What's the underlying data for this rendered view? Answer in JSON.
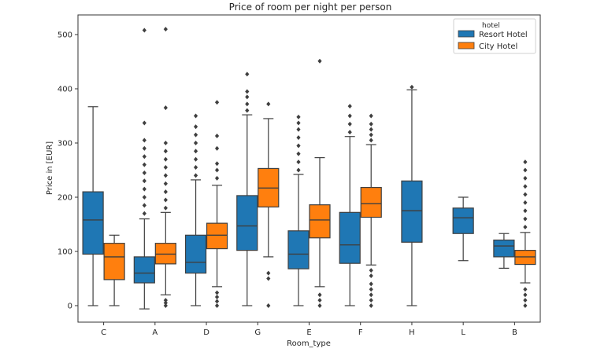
{
  "chart_data": {
    "type": "box",
    "title": "Price of room per night per person",
    "xlabel": "Room_type",
    "ylabel": "Price in [EUR]",
    "ylim": [
      -30,
      555
    ],
    "yticks": [
      0,
      100,
      200,
      300,
      400,
      500
    ],
    "legend": {
      "title": "hotel",
      "placement": "top-right",
      "entries": [
        "Resort Hotel",
        "City Hotel"
      ]
    },
    "categories": [
      "C",
      "A",
      "D",
      "G",
      "E",
      "F",
      "H",
      "L",
      "B"
    ],
    "series": [
      {
        "name": "Resort Hotel",
        "color": "#1f77b4",
        "boxes": [
          {
            "category": "C",
            "min": 0,
            "q1": 95,
            "median": 158,
            "q3": 210,
            "max": 367,
            "outliers": []
          },
          {
            "category": "A",
            "min": -6,
            "q1": 42,
            "median": 60,
            "q3": 90,
            "max": 160,
            "outliers": [
              170,
              185,
              200,
              215,
              230,
              245,
              260,
              275,
              290,
              305,
              337,
              508
            ]
          },
          {
            "category": "D",
            "min": 0,
            "q1": 60,
            "median": 80,
            "q3": 130,
            "max": 232,
            "outliers": [
              240,
              255,
              270,
              285,
              300,
              315,
              330,
              350
            ]
          },
          {
            "category": "G",
            "min": 0,
            "q1": 102,
            "median": 147,
            "q3": 203,
            "max": 352,
            "outliers": [
              360,
              372,
              385,
              395,
              427
            ]
          },
          {
            "category": "E",
            "min": 0,
            "q1": 68,
            "median": 95,
            "q3": 138,
            "max": 242,
            "outliers": [
              250,
              265,
              280,
              295,
              310,
              325,
              337,
              348
            ]
          },
          {
            "category": "F",
            "min": 0,
            "q1": 78,
            "median": 112,
            "q3": 172,
            "max": 312,
            "outliers": [
              320,
              335,
              350,
              368
            ]
          },
          {
            "category": "H",
            "min": 0,
            "q1": 117,
            "median": 175,
            "q3": 230,
            "max": 398,
            "outliers": [
              403
            ]
          },
          {
            "category": "L",
            "min": 83,
            "q1": 133,
            "median": 162,
            "q3": 180,
            "max": 200,
            "outliers": []
          },
          {
            "category": "B",
            "min": 69,
            "q1": 90,
            "median": 110,
            "q3": 121,
            "max": 133,
            "outliers": []
          }
        ]
      },
      {
        "name": "City Hotel",
        "color": "#ff7f0e",
        "boxes": [
          {
            "category": "C",
            "min": 0,
            "q1": 48,
            "median": 90,
            "q3": 115,
            "max": 130,
            "outliers": []
          },
          {
            "category": "A",
            "min": 20,
            "q1": 77,
            "median": 95,
            "q3": 115,
            "max": 172,
            "outliers": [
              0,
              5,
              10,
              180,
              195,
              210,
              225,
              240,
              255,
              270,
              285,
              300,
              365,
              510
            ]
          },
          {
            "category": "D",
            "min": 35,
            "q1": 105,
            "median": 130,
            "q3": 152,
            "max": 222,
            "outliers": [
              0,
              8,
              16,
              24,
              235,
              250,
              262,
              290,
              313,
              375
            ]
          },
          {
            "category": "G",
            "min": 90,
            "q1": 182,
            "median": 217,
            "q3": 253,
            "max": 345,
            "outliers": [
              0,
              50,
              60,
              372
            ]
          },
          {
            "category": "E",
            "min": 35,
            "q1": 125,
            "median": 158,
            "q3": 186,
            "max": 273,
            "outliers": [
              0,
              10,
              20,
              451
            ]
          },
          {
            "category": "F",
            "min": 75,
            "q1": 163,
            "median": 188,
            "q3": 218,
            "max": 297,
            "outliers": [
              0,
              10,
              20,
              30,
              40,
              55,
              65,
              305,
              315,
              325,
              335,
              350
            ]
          },
          {
            "category": "B",
            "min": 42,
            "q1": 76,
            "median": 90,
            "q3": 102,
            "max": 135,
            "outliers": [
              0,
              10,
              20,
              30,
              145,
              160,
              175,
              190,
              205,
              220,
              235,
              250,
              265
            ]
          }
        ]
      }
    ]
  }
}
